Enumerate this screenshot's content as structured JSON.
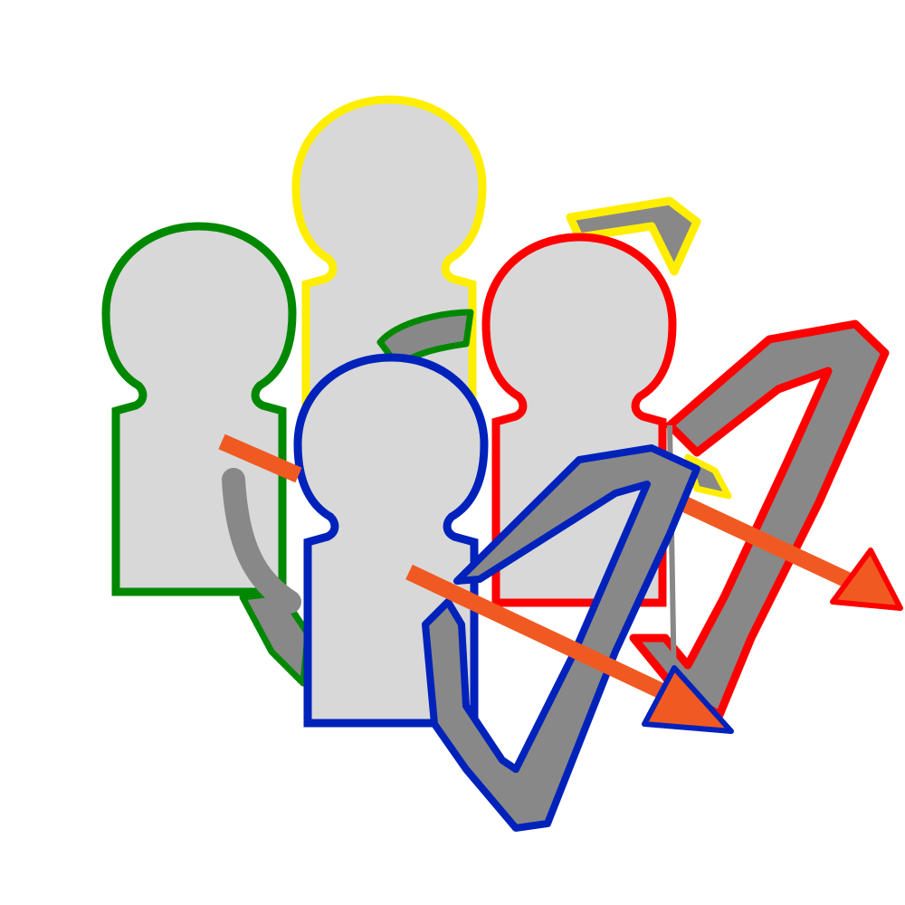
{
  "figures": [
    {
      "id": "green-archer",
      "outline_color": "#008800"
    },
    {
      "id": "yellow-archer",
      "outline_color": "#ffee00"
    },
    {
      "id": "red-archer",
      "outline_color": "#ff0000"
    },
    {
      "id": "blue-archer",
      "outline_color": "#0022bb"
    }
  ],
  "colors": {
    "body_fill": "#d8d8d8",
    "bow_fill": "#888888",
    "arrow_fill": "#f05a22"
  }
}
